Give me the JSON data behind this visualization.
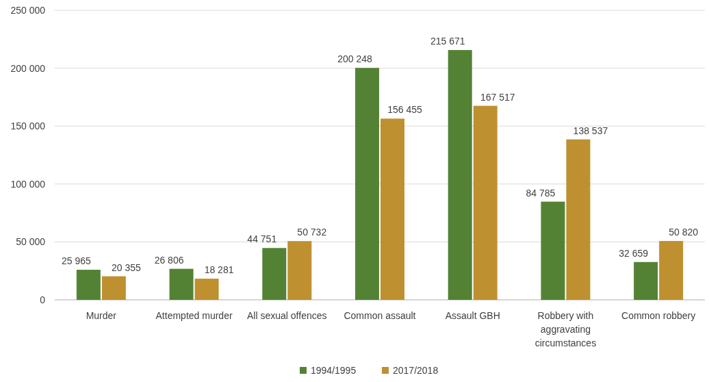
{
  "chart_data": {
    "type": "bar",
    "categories": [
      "Murder",
      "Attempted murder",
      "All sexual offences",
      "Common assault",
      "Assault GBH",
      "Robbery with aggravating circumstances",
      "Common robbery"
    ],
    "series": [
      {
        "name": "1994/1995",
        "color": "#548235",
        "values": [
          25965,
          26806,
          44751,
          200248,
          215671,
          84785,
          32659
        ],
        "value_labels": [
          "25 965",
          "26 806",
          "44 751",
          "200 248",
          "215 671",
          "84 785",
          "32 659"
        ]
      },
      {
        "name": "2017/2018",
        "color": "#bf9030",
        "values": [
          20355,
          18281,
          50732,
          156455,
          167517,
          138537,
          50820
        ],
        "value_labels": [
          "20 355",
          "18 281",
          "50 732",
          "156 455",
          "167 517",
          "138 537",
          "50 820"
        ]
      }
    ],
    "ylim": [
      0,
      250000
    ],
    "yticks": [
      {
        "value": 0,
        "label": "0"
      },
      {
        "value": 50000,
        "label": "50 000"
      },
      {
        "value": 100000,
        "label": "100 000"
      },
      {
        "value": 150000,
        "label": "150 000"
      },
      {
        "value": 200000,
        "label": "200 000"
      },
      {
        "value": 250000,
        "label": "250 000"
      }
    ],
    "grid": "y",
    "legend": "bottom"
  }
}
